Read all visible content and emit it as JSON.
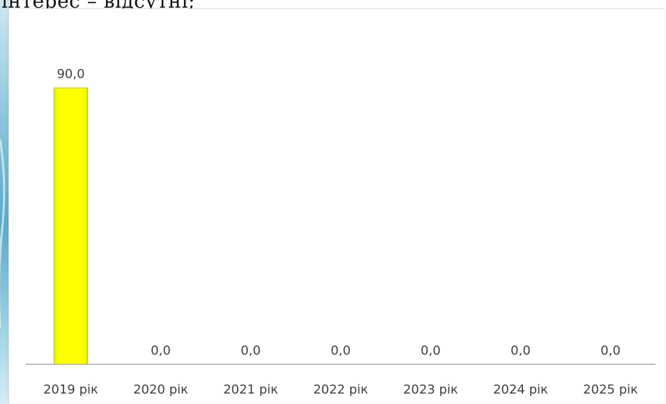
{
  "caption": {
    "text": "інтерес – відсутні;"
  },
  "colors": {
    "bar_fill": "#ffff00",
    "bar_edge": "#b5c400",
    "axis_line": "#bfbfbf",
    "label_text": "#404040"
  },
  "chart_data": {
    "type": "bar",
    "categories": [
      "2019 рік",
      "2020 рік",
      "2021 рік",
      "2022 рік",
      "2023 рік",
      "2024 рік",
      "2025 рік"
    ],
    "values": [
      90.0,
      0.0,
      0.0,
      0.0,
      0.0,
      0.0,
      0.0
    ],
    "data_labels": [
      "90,0",
      "0,0",
      "0,0",
      "0,0",
      "0,0",
      "0,0",
      "0,0"
    ],
    "title": "",
    "xlabel": "",
    "ylabel": "",
    "ylim": [
      0,
      110
    ],
    "grid": false,
    "legend": "none"
  }
}
